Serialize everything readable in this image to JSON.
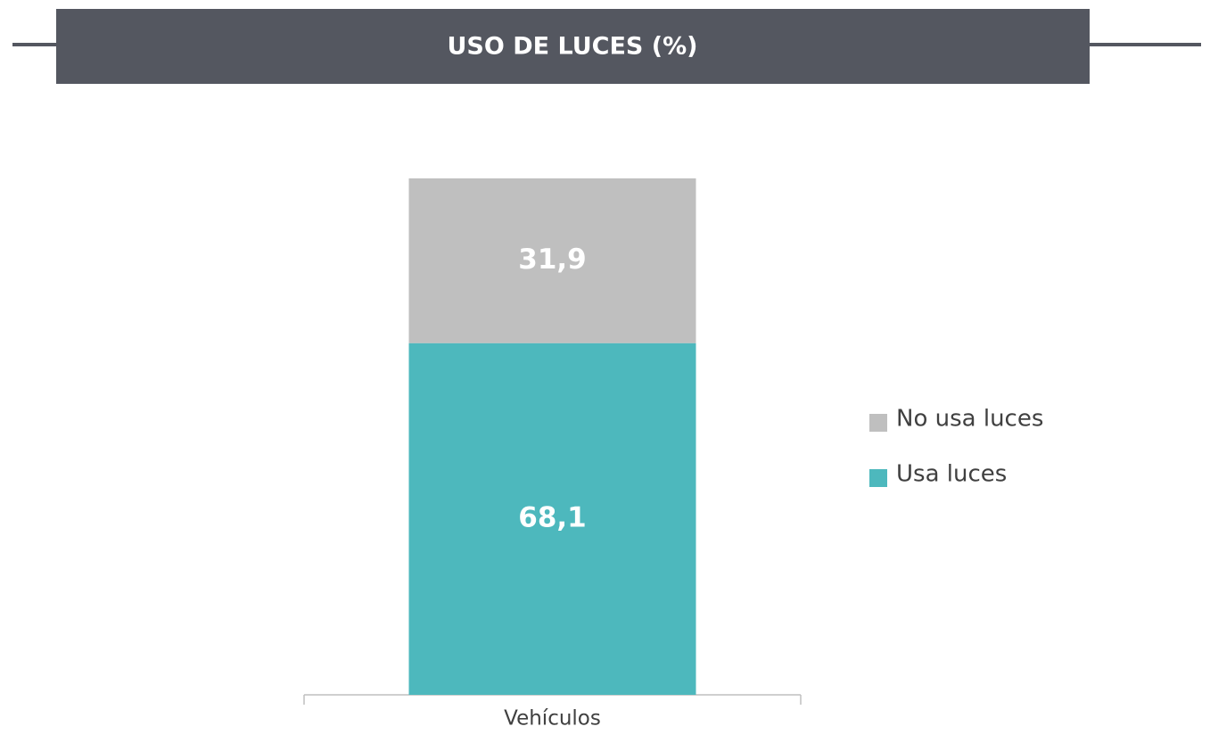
{
  "chart_data": {
    "type": "stacked_bar",
    "title": "USO DE LUCES (%)",
    "categories": [
      "Vehículos"
    ],
    "series": [
      {
        "name": "Usa luces",
        "color": "#4db8bd",
        "values": [
          68.1
        ],
        "value_labels": [
          "68,1"
        ]
      },
      {
        "name": "No usa luces",
        "color": "#bfbfbf",
        "values": [
          31.9
        ],
        "value_labels": [
          "31,9"
        ]
      }
    ],
    "legend": "right"
  }
}
